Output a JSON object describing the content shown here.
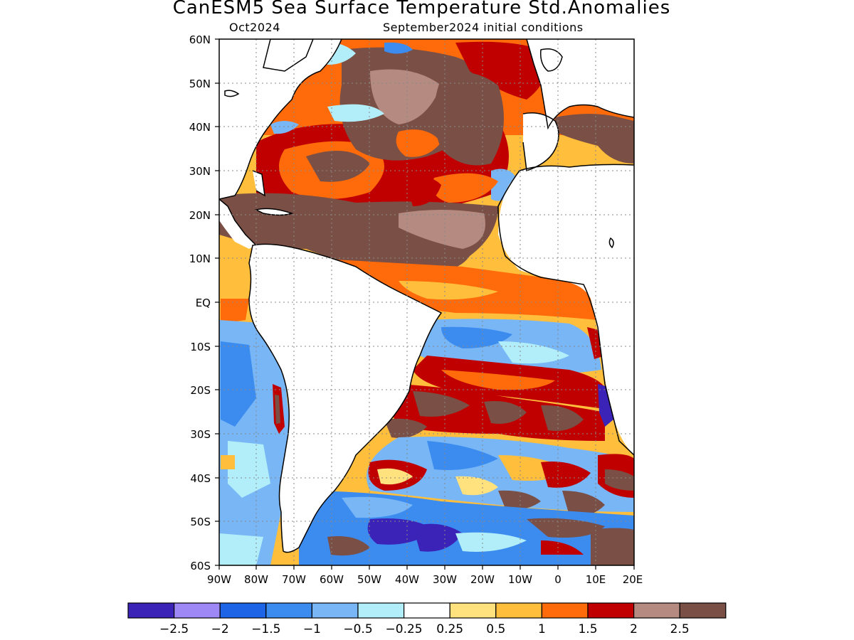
{
  "title": "CanESM5 Sea Surface Temperature Std.Anomalies",
  "subtitle_left": "Oct2024",
  "subtitle_right": "September2024 initial conditions",
  "lat_labels": [
    "60N",
    "50N",
    "40N",
    "30N",
    "20N",
    "10N",
    "EQ",
    "10S",
    "20S",
    "30S",
    "40S",
    "50S",
    "60S"
  ],
  "lon_labels": [
    "90W",
    "80W",
    "70W",
    "60W",
    "50W",
    "40W",
    "30W",
    "20W",
    "10W",
    "0",
    "10E",
    "20E"
  ],
  "colorbar": {
    "colors": [
      "#3b23b8",
      "#9d88f5",
      "#1e64e6",
      "#3c8cf0",
      "#78b6f6",
      "#b2eefa",
      "#ffffff",
      "#ffe27e",
      "#ffbe3c",
      "#ff6a0a",
      "#c00000",
      "#b58a80",
      "#7a4f45"
    ],
    "labels": [
      "−2.5",
      "−2",
      "−1.5",
      "−1",
      "−0.5",
      "−0.25",
      "0.25",
      "0.5",
      "1",
      "1.5",
      "2",
      "2.5"
    ]
  }
}
